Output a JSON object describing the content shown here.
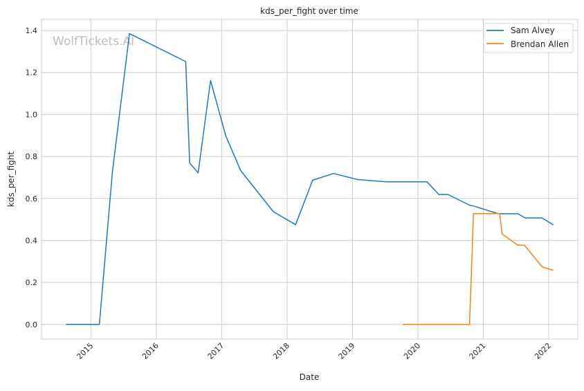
{
  "chart_data": {
    "type": "line",
    "title": "kds_per_fight over time",
    "xlabel": "Date",
    "ylabel": "kds_per_fight",
    "watermark": "WolfTickets.AI",
    "xlim": [
      2014.245,
      2022.445
    ],
    "ylim": [
      -0.07,
      1.453
    ],
    "xticks": [
      2015,
      2016,
      2017,
      2018,
      2019,
      2020,
      2021,
      2022
    ],
    "xtick_labels": [
      "2015",
      "2016",
      "2017",
      "2018",
      "2019",
      "2020",
      "2021",
      "2022"
    ],
    "yticks": [
      0.0,
      0.2,
      0.4,
      0.6,
      0.8,
      1.0,
      1.2,
      1.4
    ],
    "ytick_labels": [
      "0.0",
      "0.2",
      "0.4",
      "0.6",
      "0.8",
      "1.0",
      "1.2",
      "1.4"
    ],
    "grid": true,
    "legend_placement": "top-right",
    "series": [
      {
        "name": "Sam Alvey",
        "color": "#1f77b4",
        "x": [
          2014.62,
          2015.13,
          2015.33,
          2015.59,
          2016.45,
          2016.51,
          2016.64,
          2016.83,
          2017.06,
          2017.29,
          2017.79,
          2018.13,
          2018.39,
          2018.71,
          2019.08,
          2019.52,
          2020.14,
          2020.32,
          2020.46,
          2020.79,
          2020.85,
          2021.23,
          2021.53,
          2021.64,
          2021.9,
          2022.07
        ],
        "y": [
          0,
          0,
          0.728,
          1.385,
          1.252,
          0.769,
          0.722,
          1.162,
          0.9,
          0.733,
          0.537,
          0.475,
          0.687,
          0.719,
          0.69,
          0.679,
          0.679,
          0.619,
          0.619,
          0.568,
          0.564,
          0.527,
          0.527,
          0.507,
          0.507,
          0.474
        ]
      },
      {
        "name": "Brendan Allen",
        "color": "#ff7f0e",
        "x": [
          2019.77,
          2020.79,
          2020.85,
          2021.25,
          2021.29,
          2021.53,
          2021.63,
          2021.9,
          2022.07
        ],
        "y": [
          0,
          0,
          0.528,
          0.528,
          0.43,
          0.377,
          0.377,
          0.274,
          0.258
        ]
      }
    ]
  }
}
